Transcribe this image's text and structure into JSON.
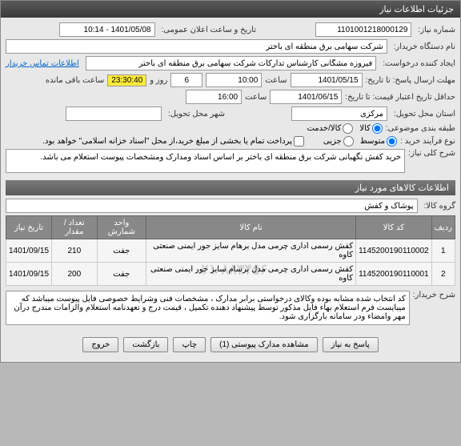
{
  "titlebar": "جزئیات اطلاعات نیاز",
  "labels": {
    "need_no": "شماره نیاز:",
    "public_time": "تاریخ و ساعت اعلان عمومی:",
    "buyer_name": "نام دستگاه خریدار:",
    "request_creator": "ایجاد کننده درخواست:",
    "contact_info": "اطلاعات تماس خریدار",
    "deadline": "مهلت ارسال پاسخ: تا تاریخ:",
    "time_lbl": "ساعت",
    "day_lbl": "روز و",
    "hours_remain": "ساعت باقی مانده",
    "min_validity": "حداقل تاریخ اعتبار قیمت: تا تاریخ:",
    "delivery_province": "استان محل تحویل:",
    "delivery_city": "شهر محل تحویل:",
    "budget_class": "طبقه بندی موضوعی:",
    "goods_radio": "کالا",
    "service_radio": "کالا/خدمت",
    "purchase_type": "نوع فرآیند خرید :",
    "mid_radio": "متوسط",
    "small_radio": "جزیی",
    "payment_note": "پرداخت تمام یا بخشی از مبلغ خرید،از محل \"اسناد خزانه اسلامی\" خواهد بود.",
    "need_desc": "شرح کلی نیاز:",
    "goods_section": "اطلاعات کالاهای مورد نیاز",
    "goods_group": "گروه کالا:",
    "buyer_desc": "شرح خریدار:"
  },
  "values": {
    "need_no": "1101001218000129",
    "public_time": "1401/05/08 - 10:14",
    "buyer_name": "شرکت سهامی برق منطقه ای باختر",
    "request_creator": "فیروزه مشگانی کارشناس تدارکات شرکت سهامی برق منطقه ای باختر",
    "deadline_date": "1401/05/15",
    "deadline_time": "10:00",
    "days_remain": "6",
    "countdown": "23:30:40",
    "validity_date": "1401/06/15",
    "validity_time": "16:00",
    "province": "مرکزی",
    "city": "",
    "need_desc": "خرید کفش نگهبانی شرکت برق منطقه ای باختر بر اساس اسناد ومدارک ومشخصات پیوست استعلام می باشد.",
    "goods_group": "پوشاک و کفش",
    "buyer_desc": "کد انتخاب شده مشابه بوده وکالای درخواستی برابر مدارک ، مشخصات فنی وشرایط خصوصی فایل پیوست میباشد که میبایست فرم استعلام بهاء فایل مذکور توسط پیشنهاد دهنده تکمیل ، قیمت درج و تعهدنامه استعلام والزامات  مندرج درآن مهر وامضاء ودر سامانه بارگزاری شود."
  },
  "table": {
    "headers": {
      "row": "ردیف",
      "code": "کد کالا",
      "name": "نام کالا",
      "unit": "واحد شمارش",
      "qty": "تعداد / مقدار",
      "date": "تاریخ نیاز"
    },
    "rows": [
      {
        "row": "1",
        "code": "1145200190110002",
        "name": "کفش رسمی اداری چرمی مدل برهام سایز جور ایمنی صنعتی کاوه",
        "unit": "جفت",
        "qty": "210",
        "date": "1401/09/15"
      },
      {
        "row": "2",
        "code": "1145200190110001",
        "name": "کفش رسمی اداری چرمی مدل برسام سایز جور ایمنی صنعتی کاوه",
        "unit": "جفت",
        "qty": "200",
        "date": "1401/09/15"
      }
    ],
    "watermark": "۰۲۱-۸۸۳۴۵۶"
  },
  "buttons": {
    "reply": "پاسخ به نیاز",
    "attachments": "مشاهده مدارک پیوستی (1)",
    "print": "چاپ",
    "back": "بازگشت",
    "exit": "خروج"
  }
}
